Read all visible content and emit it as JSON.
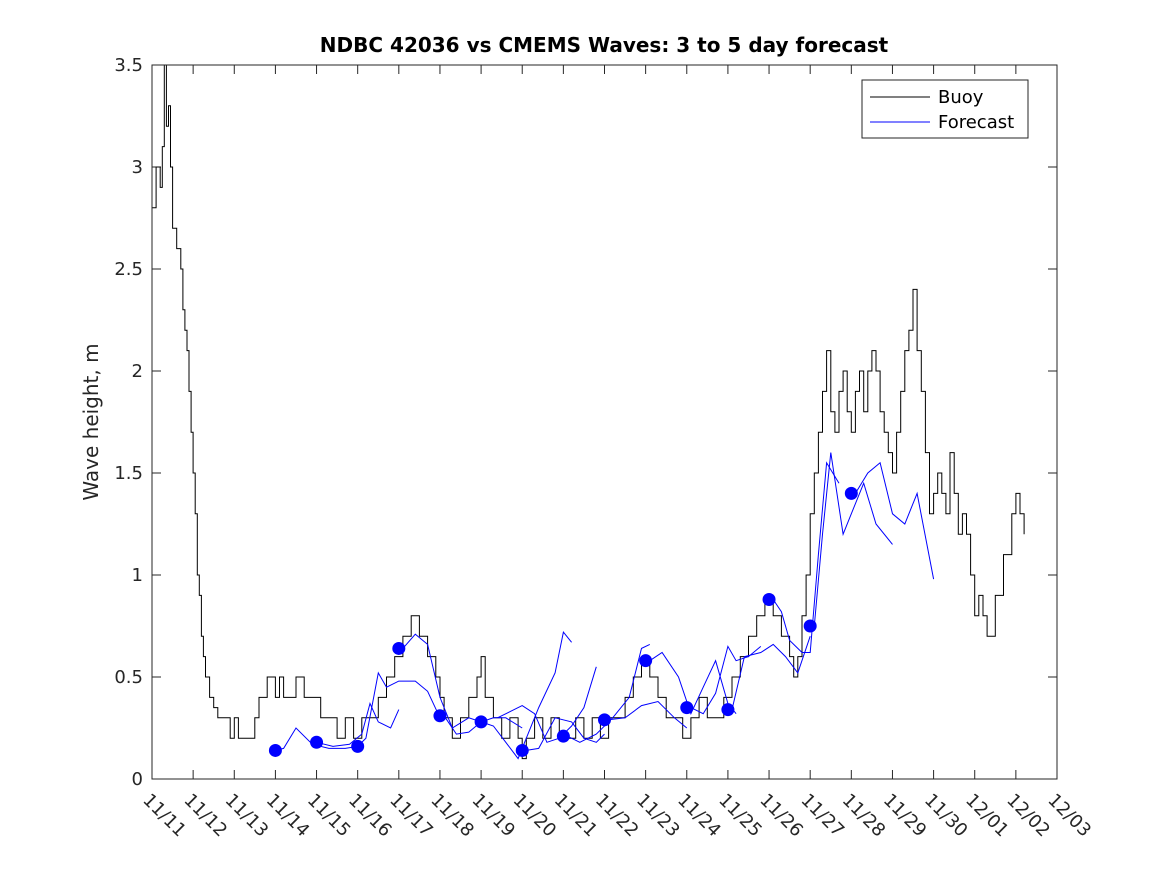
{
  "chart_data": {
    "type": "line",
    "title": "NDBC 42036 vs CMEMS Waves: 3 to 5 day forecast",
    "xlabel": "",
    "ylabel": "Wave height, m",
    "x_ticks": [
      "11/11",
      "11/12",
      "11/13",
      "11/14",
      "11/15",
      "11/16",
      "11/17",
      "11/18",
      "11/19",
      "11/20",
      "11/21",
      "11/22",
      "11/23",
      "11/24",
      "11/25",
      "11/26",
      "11/27",
      "11/28",
      "11/29",
      "11/30",
      "12/01",
      "12/02",
      "12/03"
    ],
    "y_ticks": [
      "0",
      "0.5",
      "1",
      "1.5",
      "2",
      "2.5",
      "3",
      "3.5"
    ],
    "xlim": [
      0,
      22
    ],
    "ylim": [
      0,
      3.5
    ],
    "x_unit": "days since 11/11",
    "legend": {
      "position": "top-right",
      "entries": [
        "Buoy",
        "Forecast"
      ]
    },
    "colors": {
      "buoy": "#000000",
      "forecast": "#0000ff"
    },
    "series": [
      {
        "name": "Buoy",
        "style": "step",
        "points": [
          [
            0,
            2.8
          ],
          [
            0.1,
            3.0
          ],
          [
            0.2,
            2.9
          ],
          [
            0.25,
            3.1
          ],
          [
            0.3,
            3.5
          ],
          [
            0.35,
            3.2
          ],
          [
            0.4,
            3.3
          ],
          [
            0.45,
            3.0
          ],
          [
            0.5,
            2.7
          ],
          [
            0.6,
            2.6
          ],
          [
            0.7,
            2.5
          ],
          [
            0.75,
            2.3
          ],
          [
            0.8,
            2.2
          ],
          [
            0.85,
            2.1
          ],
          [
            0.9,
            1.9
          ],
          [
            0.95,
            1.7
          ],
          [
            1.0,
            1.5
          ],
          [
            1.05,
            1.3
          ],
          [
            1.1,
            1.0
          ],
          [
            1.15,
            0.9
          ],
          [
            1.2,
            0.7
          ],
          [
            1.25,
            0.6
          ],
          [
            1.3,
            0.5
          ],
          [
            1.4,
            0.4
          ],
          [
            1.5,
            0.35
          ],
          [
            1.6,
            0.3
          ],
          [
            1.8,
            0.3
          ],
          [
            1.9,
            0.2
          ],
          [
            2.0,
            0.3
          ],
          [
            2.1,
            0.2
          ],
          [
            2.3,
            0.2
          ],
          [
            2.5,
            0.3
          ],
          [
            2.6,
            0.4
          ],
          [
            2.8,
            0.5
          ],
          [
            3.0,
            0.4
          ],
          [
            3.1,
            0.5
          ],
          [
            3.2,
            0.4
          ],
          [
            3.4,
            0.4
          ],
          [
            3.5,
            0.5
          ],
          [
            3.7,
            0.4
          ],
          [
            3.9,
            0.4
          ],
          [
            4.1,
            0.3
          ],
          [
            4.3,
            0.3
          ],
          [
            4.5,
            0.2
          ],
          [
            4.7,
            0.3
          ],
          [
            4.9,
            0.2
          ],
          [
            5.1,
            0.3
          ],
          [
            5.3,
            0.3
          ],
          [
            5.5,
            0.4
          ],
          [
            5.7,
            0.5
          ],
          [
            5.9,
            0.6
          ],
          [
            6.1,
            0.7
          ],
          [
            6.3,
            0.8
          ],
          [
            6.5,
            0.7
          ],
          [
            6.7,
            0.6
          ],
          [
            6.9,
            0.5
          ],
          [
            7.0,
            0.4
          ],
          [
            7.1,
            0.3
          ],
          [
            7.3,
            0.2
          ],
          [
            7.5,
            0.3
          ],
          [
            7.7,
            0.4
          ],
          [
            7.9,
            0.5
          ],
          [
            8.0,
            0.6
          ],
          [
            8.1,
            0.4
          ],
          [
            8.3,
            0.3
          ],
          [
            8.5,
            0.2
          ],
          [
            8.7,
            0.3
          ],
          [
            8.9,
            0.2
          ],
          [
            9.0,
            0.1
          ],
          [
            9.1,
            0.2
          ],
          [
            9.3,
            0.3
          ],
          [
            9.5,
            0.2
          ],
          [
            9.7,
            0.3
          ],
          [
            9.9,
            0.2
          ],
          [
            10.1,
            0.2
          ],
          [
            10.3,
            0.3
          ],
          [
            10.5,
            0.2
          ],
          [
            10.7,
            0.3
          ],
          [
            10.9,
            0.2
          ],
          [
            11.1,
            0.3
          ],
          [
            11.3,
            0.3
          ],
          [
            11.5,
            0.4
          ],
          [
            11.7,
            0.5
          ],
          [
            11.9,
            0.6
          ],
          [
            12.1,
            0.5
          ],
          [
            12.3,
            0.4
          ],
          [
            12.5,
            0.3
          ],
          [
            12.7,
            0.3
          ],
          [
            12.9,
            0.2
          ],
          [
            13.1,
            0.3
          ],
          [
            13.3,
            0.4
          ],
          [
            13.5,
            0.3
          ],
          [
            13.7,
            0.3
          ],
          [
            13.9,
            0.4
          ],
          [
            14.1,
            0.5
          ],
          [
            14.3,
            0.6
          ],
          [
            14.5,
            0.7
          ],
          [
            14.7,
            0.8
          ],
          [
            14.9,
            0.9
          ],
          [
            15.1,
            0.8
          ],
          [
            15.3,
            0.7
          ],
          [
            15.5,
            0.6
          ],
          [
            15.6,
            0.5
          ],
          [
            15.7,
            0.6
          ],
          [
            15.8,
            0.8
          ],
          [
            15.9,
            1.0
          ],
          [
            16.0,
            1.3
          ],
          [
            16.1,
            1.5
          ],
          [
            16.2,
            1.7
          ],
          [
            16.3,
            1.9
          ],
          [
            16.4,
            2.1
          ],
          [
            16.5,
            1.8
          ],
          [
            16.6,
            1.7
          ],
          [
            16.7,
            1.9
          ],
          [
            16.8,
            2.0
          ],
          [
            16.9,
            1.8
          ],
          [
            17.0,
            1.7
          ],
          [
            17.1,
            1.9
          ],
          [
            17.2,
            2.0
          ],
          [
            17.3,
            1.8
          ],
          [
            17.4,
            2.0
          ],
          [
            17.5,
            2.1
          ],
          [
            17.6,
            2.0
          ],
          [
            17.7,
            1.8
          ],
          [
            17.8,
            1.7
          ],
          [
            17.9,
            1.6
          ],
          [
            18.0,
            1.5
          ],
          [
            18.1,
            1.7
          ],
          [
            18.2,
            1.9
          ],
          [
            18.3,
            2.1
          ],
          [
            18.4,
            2.2
          ],
          [
            18.5,
            2.4
          ],
          [
            18.6,
            2.1
          ],
          [
            18.7,
            1.9
          ],
          [
            18.8,
            1.6
          ],
          [
            18.9,
            1.3
          ],
          [
            19.0,
            1.4
          ],
          [
            19.1,
            1.5
          ],
          [
            19.2,
            1.4
          ],
          [
            19.3,
            1.3
          ],
          [
            19.4,
            1.6
          ],
          [
            19.5,
            1.4
          ],
          [
            19.6,
            1.2
          ],
          [
            19.7,
            1.3
          ],
          [
            19.8,
            1.2
          ],
          [
            19.9,
            1.0
          ],
          [
            20.0,
            0.8
          ],
          [
            20.1,
            0.9
          ],
          [
            20.2,
            0.8
          ],
          [
            20.3,
            0.7
          ],
          [
            20.5,
            0.9
          ],
          [
            20.7,
            1.1
          ],
          [
            20.9,
            1.3
          ],
          [
            21.0,
            1.4
          ],
          [
            21.1,
            1.3
          ],
          [
            21.2,
            1.2
          ]
        ]
      },
      {
        "name": "Forecast",
        "style": "lines",
        "segments": [
          [
            [
              3.0,
              0.14
            ],
            [
              3.2,
              0.15
            ],
            [
              3.5,
              0.25
            ],
            [
              3.9,
              0.17
            ],
            [
              4.3,
              0.15
            ],
            [
              4.7,
              0.15
            ],
            [
              5.0,
              0.16
            ]
          ],
          [
            [
              4.0,
              0.18
            ],
            [
              4.4,
              0.16
            ],
            [
              4.8,
              0.17
            ],
            [
              5.1,
              0.22
            ],
            [
              5.3,
              0.37
            ],
            [
              5.5,
              0.28
            ],
            [
              5.8,
              0.25
            ],
            [
              6.0,
              0.34
            ]
          ],
          [
            [
              5.0,
              0.16
            ],
            [
              5.2,
              0.2
            ],
            [
              5.5,
              0.52
            ],
            [
              5.7,
              0.45
            ],
            [
              6.0,
              0.48
            ],
            [
              6.4,
              0.48
            ],
            [
              6.7,
              0.43
            ],
            [
              7.0,
              0.3
            ]
          ],
          [
            [
              6.1,
              0.64
            ],
            [
              6.4,
              0.71
            ],
            [
              6.7,
              0.66
            ],
            [
              7.0,
              0.4
            ],
            [
              7.3,
              0.25
            ],
            [
              7.7,
              0.3
            ],
            [
              8.0,
              0.28
            ]
          ],
          [
            [
              7.1,
              0.31
            ],
            [
              7.4,
              0.22
            ],
            [
              7.7,
              0.23
            ],
            [
              8.0,
              0.28
            ],
            [
              8.3,
              0.3
            ],
            [
              8.6,
              0.3
            ],
            [
              9.0,
              0.25
            ]
          ],
          [
            [
              8.0,
              0.28
            ],
            [
              8.3,
              0.26
            ],
            [
              8.6,
              0.18
            ],
            [
              8.9,
              0.1
            ],
            [
              9.1,
              0.2
            ],
            [
              9.4,
              0.35
            ],
            [
              9.8,
              0.52
            ],
            [
              10.0,
              0.72
            ],
            [
              10.2,
              0.67
            ]
          ],
          [
            [
              8.4,
              0.3
            ],
            [
              8.7,
              0.33
            ],
            [
              9.0,
              0.36
            ],
            [
              9.3,
              0.32
            ],
            [
              9.6,
              0.18
            ],
            [
              9.9,
              0.2
            ],
            [
              10.2,
              0.26
            ],
            [
              10.5,
              0.35
            ],
            [
              10.8,
              0.55
            ]
          ],
          [
            [
              9.1,
              0.14
            ],
            [
              9.4,
              0.15
            ],
            [
              9.8,
              0.3
            ],
            [
              10.2,
              0.28
            ],
            [
              10.5,
              0.2
            ],
            [
              10.8,
              0.18
            ],
            [
              11.0,
              0.22
            ]
          ],
          [
            [
              10.1,
              0.21
            ],
            [
              10.4,
              0.18
            ],
            [
              10.8,
              0.22
            ],
            [
              11.2,
              0.3
            ],
            [
              11.6,
              0.4
            ],
            [
              11.9,
              0.64
            ],
            [
              12.1,
              0.66
            ]
          ],
          [
            [
              11.1,
              0.29
            ],
            [
              11.5,
              0.3
            ],
            [
              11.9,
              0.36
            ],
            [
              12.3,
              0.38
            ],
            [
              12.7,
              0.3
            ],
            [
              13.0,
              0.25
            ]
          ],
          [
            [
              12.1,
              0.58
            ],
            [
              12.4,
              0.62
            ],
            [
              12.8,
              0.5
            ],
            [
              13.1,
              0.32
            ],
            [
              13.4,
              0.45
            ],
            [
              13.7,
              0.58
            ],
            [
              14.0,
              0.37
            ],
            [
              14.2,
              0.32
            ]
          ],
          [
            [
              13.1,
              0.35
            ],
            [
              13.4,
              0.32
            ],
            [
              13.7,
              0.42
            ],
            [
              14.0,
              0.65
            ],
            [
              14.2,
              0.58
            ],
            [
              14.5,
              0.6
            ],
            [
              14.8,
              0.65
            ]
          ],
          [
            [
              14.1,
              0.34
            ],
            [
              14.4,
              0.6
            ],
            [
              14.8,
              0.62
            ],
            [
              15.1,
              0.66
            ],
            [
              15.4,
              0.6
            ],
            [
              15.7,
              0.52
            ],
            [
              16.0,
              0.7
            ]
          ],
          [
            [
              15.1,
              0.88
            ],
            [
              15.3,
              0.82
            ],
            [
              15.5,
              0.68
            ],
            [
              15.8,
              0.62
            ],
            [
              16.0,
              0.62
            ],
            [
              16.2,
              1.1
            ],
            [
              16.4,
              1.55
            ],
            [
              16.7,
              1.45
            ]
          ],
          [
            [
              16.1,
              0.75
            ],
            [
              16.3,
              1.2
            ],
            [
              16.5,
              1.6
            ],
            [
              16.8,
              1.2
            ],
            [
              17.0,
              1.3
            ],
            [
              17.3,
              1.45
            ],
            [
              17.6,
              1.25
            ],
            [
              18.0,
              1.15
            ]
          ],
          [
            [
              17.1,
              1.4
            ],
            [
              17.4,
              1.5
            ],
            [
              17.7,
              1.55
            ],
            [
              18.0,
              1.3
            ],
            [
              18.3,
              1.25
            ],
            [
              18.6,
              1.4
            ],
            [
              19.0,
              0.98
            ]
          ]
        ],
        "markers": [
          [
            3.0,
            0.14
          ],
          [
            4.0,
            0.18
          ],
          [
            5.0,
            0.16
          ],
          [
            6.0,
            0.64
          ],
          [
            7.0,
            0.31
          ],
          [
            8.0,
            0.28
          ],
          [
            9.0,
            0.14
          ],
          [
            10.0,
            0.21
          ],
          [
            11.0,
            0.29
          ],
          [
            12.0,
            0.58
          ],
          [
            13.0,
            0.35
          ],
          [
            14.0,
            0.34
          ],
          [
            15.0,
            0.88
          ],
          [
            16.0,
            0.75
          ],
          [
            17.0,
            1.4
          ]
        ]
      }
    ]
  }
}
